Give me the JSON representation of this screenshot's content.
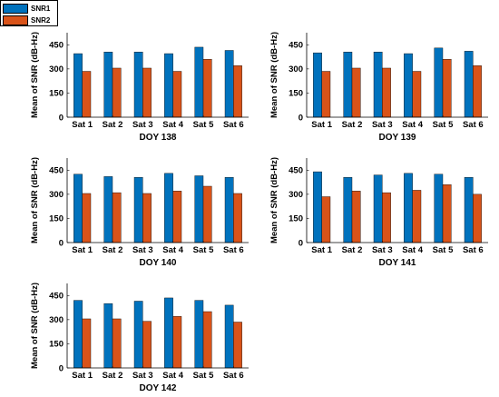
{
  "colors": {
    "snr1": "#0072BD",
    "snr2": "#D95319"
  },
  "legend": {
    "items": [
      {
        "label": "SNR1"
      },
      {
        "label": "SNR2"
      }
    ]
  },
  "chart_data": [
    {
      "type": "bar",
      "categories": [
        "Sat 1",
        "Sat 2",
        "Sat 3",
        "Sat 4",
        "Sat 5",
        "Sat 6"
      ],
      "series": [
        {
          "name": "SNR1",
          "values": [
            395,
            405,
            405,
            395,
            435,
            415
          ]
        },
        {
          "name": "SNR2",
          "values": [
            285,
            305,
            305,
            285,
            360,
            320
          ]
        }
      ],
      "xlabel": "DOY 138",
      "ylabel": "Mean of SNR (dB-Hz)",
      "ylim": [
        0,
        525
      ],
      "yticks": [
        0,
        150,
        300,
        450
      ]
    },
    {
      "type": "bar",
      "categories": [
        "Sat 1",
        "Sat 2",
        "Sat 3",
        "Sat 4",
        "Sat 5",
        "Sat 6"
      ],
      "series": [
        {
          "name": "SNR1",
          "values": [
            400,
            405,
            405,
            395,
            430,
            410
          ]
        },
        {
          "name": "SNR2",
          "values": [
            285,
            305,
            305,
            285,
            360,
            320
          ]
        }
      ],
      "xlabel": "DOY 139",
      "ylabel": "Mean of SNR (dB-Hz)",
      "ylim": [
        0,
        525
      ],
      "yticks": [
        0,
        150,
        300,
        450
      ]
    },
    {
      "type": "bar",
      "categories": [
        "Sat 1",
        "Sat 2",
        "Sat 3",
        "Sat 4",
        "Sat 5",
        "Sat 6"
      ],
      "series": [
        {
          "name": "SNR1",
          "values": [
            425,
            410,
            405,
            430,
            415,
            405
          ]
        },
        {
          "name": "SNR2",
          "values": [
            305,
            310,
            305,
            320,
            350,
            305
          ]
        }
      ],
      "xlabel": "DOY 140",
      "ylabel": "Mean of SNR (dB-Hz)",
      "ylim": [
        0,
        525
      ],
      "yticks": [
        0,
        150,
        300,
        450
      ]
    },
    {
      "type": "bar",
      "categories": [
        "Sat 1",
        "Sat 2",
        "Sat 3",
        "Sat 4",
        "Sat 5",
        "Sat 6"
      ],
      "series": [
        {
          "name": "SNR1",
          "values": [
            440,
            405,
            420,
            430,
            425,
            405
          ]
        },
        {
          "name": "SNR2",
          "values": [
            285,
            320,
            310,
            325,
            360,
            300
          ]
        }
      ],
      "xlabel": "DOY 141",
      "ylabel": "Mean of SNR (dB-Hz)",
      "ylim": [
        0,
        525
      ],
      "yticks": [
        0,
        150,
        300,
        450
      ]
    },
    {
      "type": "bar",
      "categories": [
        "Sat 1",
        "Sat 2",
        "Sat 3",
        "Sat 4",
        "Sat 5",
        "Sat 6"
      ],
      "series": [
        {
          "name": "SNR1",
          "values": [
            420,
            400,
            415,
            435,
            420,
            390
          ]
        },
        {
          "name": "SNR2",
          "values": [
            305,
            305,
            290,
            320,
            350,
            285
          ]
        }
      ],
      "xlabel": "DOY 142",
      "ylabel": "Mean of SNR (dB-Hz)",
      "ylim": [
        0,
        525
      ],
      "yticks": [
        0,
        150,
        300,
        450
      ]
    }
  ]
}
